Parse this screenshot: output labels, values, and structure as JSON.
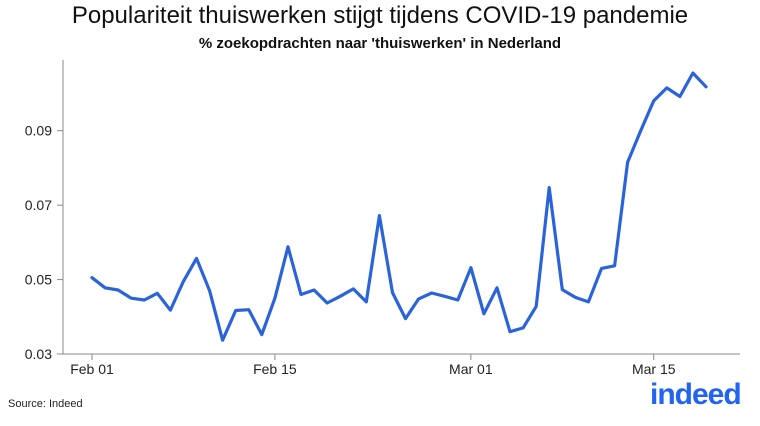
{
  "title": "Populariteit thuiswerken stijgt tijdens COVID-19 pandemie",
  "subtitle": "% zoekopdrachten naar 'thuiswerken' in Nederland",
  "source": "Source: Indeed",
  "logo": "indeed",
  "colors": {
    "line": "#2b63d9",
    "axis": "#8a8a8a",
    "logo": "#2164f3"
  },
  "chart_data": {
    "type": "line",
    "title": "Populariteit thuiswerken stijgt tijdens COVID-19 pandemie",
    "subtitle": "% zoekopdrachten naar 'thuiswerken' in Nederland",
    "xlabel": "",
    "ylabel": "",
    "x_tick_labels": [
      {
        "label": "Feb 01",
        "day": 0
      },
      {
        "label": "Feb 15",
        "day": 14
      },
      {
        "label": "Mar 01",
        "day": 29
      },
      {
        "label": "Mar 15",
        "day": 43
      }
    ],
    "y_ticks": [
      "0.03",
      "0.05",
      "0.07",
      "0.09"
    ],
    "ylim": [
      0.03,
      0.109
    ],
    "grid": false,
    "series": [
      {
        "values": [
          0.0505,
          0.0478,
          0.0472,
          0.045,
          0.0445,
          0.0463,
          0.0418,
          0.0495,
          0.0557,
          0.047,
          0.0337,
          0.0417,
          0.0419,
          0.0352,
          0.045,
          0.0588,
          0.046,
          0.0472,
          0.0437,
          0.0455,
          0.0475,
          0.044,
          0.0672,
          0.0465,
          0.0395,
          0.0448,
          0.0464,
          0.0455,
          0.0445,
          0.0532,
          0.0408,
          0.0478,
          0.036,
          0.037,
          0.0428,
          0.0747,
          0.0473,
          0.0452,
          0.044,
          0.053,
          0.0537,
          0.0815,
          0.09,
          0.098,
          0.1015,
          0.0992,
          0.1055,
          0.1018
        ]
      }
    ]
  }
}
